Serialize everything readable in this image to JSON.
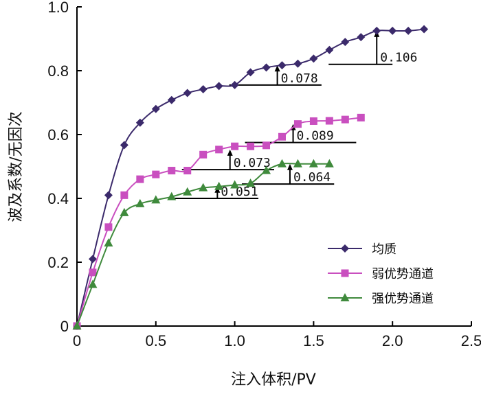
{
  "chart_data": {
    "type": "line",
    "xlabel": "注入体积/PV",
    "ylabel": "波及系数/无因次",
    "xlim": [
      0,
      2.5
    ],
    "ylim": [
      0,
      1.0
    ],
    "x_ticks": [
      "0",
      "0.5",
      "1.0",
      "1.5",
      "2.0",
      "2.5"
    ],
    "y_ticks": [
      "0",
      "0.2",
      "0.4",
      "0.6",
      "0.8",
      "1.0"
    ],
    "legend_position": "bottom-right",
    "series": [
      {
        "name": "均质",
        "color": "#3b2a6b",
        "marker": "diamond",
        "x": [
          0,
          0.1,
          0.2,
          0.3,
          0.4,
          0.5,
          0.6,
          0.7,
          0.8,
          0.9,
          1.0,
          1.1,
          1.2,
          1.3,
          1.4,
          1.5,
          1.6,
          1.7,
          1.8,
          1.9,
          2.0,
          2.1,
          2.2
        ],
        "y": [
          0,
          0.21,
          0.41,
          0.567,
          0.637,
          0.68,
          0.708,
          0.73,
          0.742,
          0.752,
          0.755,
          0.795,
          0.81,
          0.817,
          0.822,
          0.838,
          0.865,
          0.89,
          0.905,
          0.925,
          0.925,
          0.925,
          0.93
        ]
      },
      {
        "name": "弱优势通道",
        "color": "#c94fbf",
        "marker": "square",
        "x": [
          0,
          0.1,
          0.2,
          0.3,
          0.4,
          0.5,
          0.6,
          0.7,
          0.8,
          0.9,
          1.0,
          1.1,
          1.2,
          1.3,
          1.4,
          1.5,
          1.6,
          1.7,
          1.8
        ],
        "y": [
          0,
          0.168,
          0.31,
          0.41,
          0.46,
          0.475,
          0.487,
          0.487,
          0.537,
          0.553,
          0.563,
          0.563,
          0.566,
          0.593,
          0.633,
          0.642,
          0.643,
          0.647,
          0.653
        ]
      },
      {
        "name": "强优势通道",
        "color": "#3f8a3c",
        "marker": "triangle",
        "x": [
          0,
          0.1,
          0.2,
          0.3,
          0.4,
          0.5,
          0.6,
          0.7,
          0.8,
          0.9,
          1.0,
          1.1,
          1.2,
          1.3,
          1.4,
          1.5,
          1.6
        ],
        "y": [
          0,
          0.13,
          0.26,
          0.355,
          0.383,
          0.395,
          0.405,
          0.42,
          0.433,
          0.437,
          0.442,
          0.447,
          0.487,
          0.508,
          0.508,
          0.508,
          0.508
        ]
      }
    ],
    "annotations": [
      {
        "label": "0.106",
        "x": 1.9,
        "y_low": 0.82,
        "y_high": 0.925,
        "x_end": 2.0
      },
      {
        "label": "0.078",
        "x": 1.27,
        "y_low": 0.755,
        "y_high": 0.817,
        "x_end": 1.55
      },
      {
        "label": "0.089",
        "x": 1.37,
        "y_low": 0.575,
        "y_high": 0.633,
        "x_end": 1.77
      },
      {
        "label": "0.073",
        "x": 0.97,
        "y_low": 0.49,
        "y_high": 0.553,
        "x_end": 1.25
      },
      {
        "label": "0.064",
        "x": 1.35,
        "y_low": 0.445,
        "y_high": 0.508,
        "x_end": 1.63
      },
      {
        "label": "0.051",
        "x": 0.89,
        "y_low": 0.4,
        "y_high": 0.437,
        "x_end": 1.15
      }
    ]
  }
}
